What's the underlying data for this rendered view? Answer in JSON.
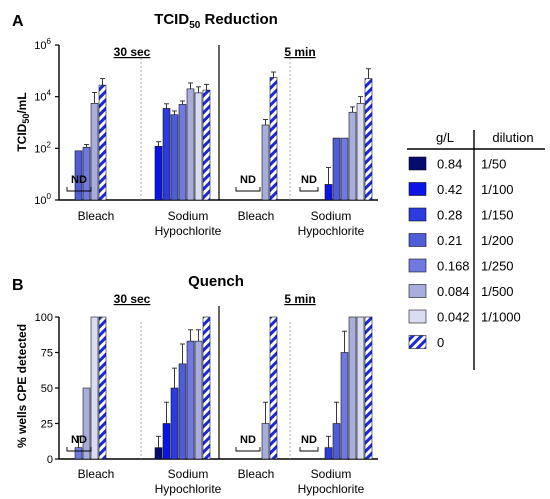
{
  "panel_labels": [
    "A",
    "B"
  ],
  "palette": {
    "0.84": "#050a6e",
    "0.42": "#0a14e6",
    "0.28": "#2b3bde",
    "0.21": "#4f5ed6",
    "0.168": "#7079e0",
    "0.084": "#a7addc",
    "0.042": "#dadcf2",
    "0": "hatch-blue-white"
  },
  "legend": {
    "headers": [
      "g/L",
      "dilution"
    ],
    "rows": [
      {
        "key": "0.84",
        "g": "0.84",
        "dil": "1/50"
      },
      {
        "key": "0.42",
        "g": "0.42",
        "dil": "1/100"
      },
      {
        "key": "0.28",
        "g": "0.28",
        "dil": "1/150"
      },
      {
        "key": "0.21",
        "g": "0.21",
        "dil": "1/200"
      },
      {
        "key": "0.168",
        "g": "0.168",
        "dil": "1/250"
      },
      {
        "key": "0.084",
        "g": "0.084",
        "dil": "1/500"
      },
      {
        "key": "0.042",
        "g": "0.042",
        "dil": "1/1000"
      },
      {
        "key": "0",
        "g": "0",
        "dil": ""
      }
    ]
  },
  "chart_data": [
    {
      "type": "bar",
      "title": "TCID50 Reduction",
      "ylabel": "TCID50/mL",
      "yscale": "log",
      "ylim": [
        1,
        1000000
      ],
      "yticks": [
        {
          "v": 1,
          "b": "10",
          "e": "0"
        },
        {
          "v": 100,
          "b": "10",
          "e": "2"
        },
        {
          "v": 10000,
          "b": "10",
          "e": "4"
        },
        {
          "v": 1000000,
          "b": "10",
          "e": "6"
        }
      ],
      "timepoints": [
        "30 sec",
        "5 min"
      ],
      "categories": [
        "Bleach",
        "Sodium Hypochlorite"
      ],
      "nd_label": "ND",
      "groups": [
        {
          "time": "30 sec",
          "category": "Bleach",
          "nd": true,
          "bars": [
            {
              "key": "0.21",
              "value": 80
            },
            {
              "key": "0.168",
              "value": 110,
              "err": 30
            },
            {
              "key": "0.084",
              "value": 5500,
              "err": 9000
            },
            {
              "key": "0",
              "value": 28000,
              "err": 22000
            }
          ]
        },
        {
          "time": "30 sec",
          "category": "Sodium Hypochlorite",
          "nd": false,
          "bars": [
            {
              "key": "0.42",
              "value": 120,
              "err": 60
            },
            {
              "key": "0.28",
              "value": 3500,
              "err": 1800
            },
            {
              "key": "0.21",
              "value": 2000,
              "err": 800
            },
            {
              "key": "0.168",
              "value": 5000,
              "err": 1800
            },
            {
              "key": "0.084",
              "value": 20000,
              "err": 14000
            },
            {
              "key": "0.042",
              "value": 14000,
              "err": 10000
            },
            {
              "key": "0",
              "value": 18000,
              "err": 12000
            }
          ]
        },
        {
          "time": "5 min",
          "category": "Bleach",
          "nd": true,
          "bars": [
            {
              "key": "0.084",
              "value": 800,
              "err": 500
            },
            {
              "key": "0",
              "value": 55000,
              "err": 35000
            }
          ]
        },
        {
          "time": "5 min",
          "category": "Sodium Hypochlorite",
          "nd": true,
          "bars": [
            {
              "key": "0.42",
              "value": 4,
              "err": 14
            },
            {
              "key": "0.21",
              "value": 250
            },
            {
              "key": "0.168",
              "value": 250
            },
            {
              "key": "0.084",
              "value": 2500,
              "err": 1500
            },
            {
              "key": "0.042",
              "value": 5500,
              "err": 4500
            },
            {
              "key": "0",
              "value": 50000,
              "err": 70000
            }
          ]
        }
      ]
    },
    {
      "type": "bar",
      "title": "Quench",
      "ylabel": "% wells CPE detected",
      "ylim": [
        0,
        100
      ],
      "yticks": [
        "0",
        "25",
        "50",
        "75",
        "100"
      ],
      "timepoints": [
        "30 sec",
        "5 min"
      ],
      "categories": [
        "Bleach",
        "Sodium Hypochlorite"
      ],
      "nd_label": "ND",
      "groups": [
        {
          "time": "30 sec",
          "category": "Bleach",
          "nd": true,
          "bars": [
            {
              "key": "0.168",
              "value": 8,
              "err": 8
            },
            {
              "key": "0.084",
              "value": 50
            },
            {
              "key": "0.042",
              "value": 100
            },
            {
              "key": "0",
              "value": 100
            }
          ]
        },
        {
          "time": "30 sec",
          "category": "Sodium Hypochlorite",
          "nd": false,
          "bars": [
            {
              "key": "0.84",
              "value": 8,
              "err": 8
            },
            {
              "key": "0.42",
              "value": 25,
              "err": 15
            },
            {
              "key": "0.28",
              "value": 50,
              "err": 14
            },
            {
              "key": "0.21",
              "value": 67,
              "err": 14
            },
            {
              "key": "0.168",
              "value": 83,
              "err": 8
            },
            {
              "key": "0.084",
              "value": 83,
              "err": 8
            },
            {
              "key": "0",
              "value": 100
            }
          ]
        },
        {
          "time": "5 min",
          "category": "Bleach",
          "nd": true,
          "bars": [
            {
              "key": "0.084",
              "value": 25,
              "err": 15
            },
            {
              "key": "0",
              "value": 100
            }
          ]
        },
        {
          "time": "5 min",
          "category": "Sodium Hypochlorite",
          "nd": true,
          "bars": [
            {
              "key": "0.28",
              "value": 8,
              "err": 8
            },
            {
              "key": "0.21",
              "value": 25,
              "err": 15
            },
            {
              "key": "0.168",
              "value": 75,
              "err": 15
            },
            {
              "key": "0.084",
              "value": 100
            },
            {
              "key": "0.042",
              "value": 100
            },
            {
              "key": "0",
              "value": 100
            }
          ]
        }
      ]
    }
  ]
}
